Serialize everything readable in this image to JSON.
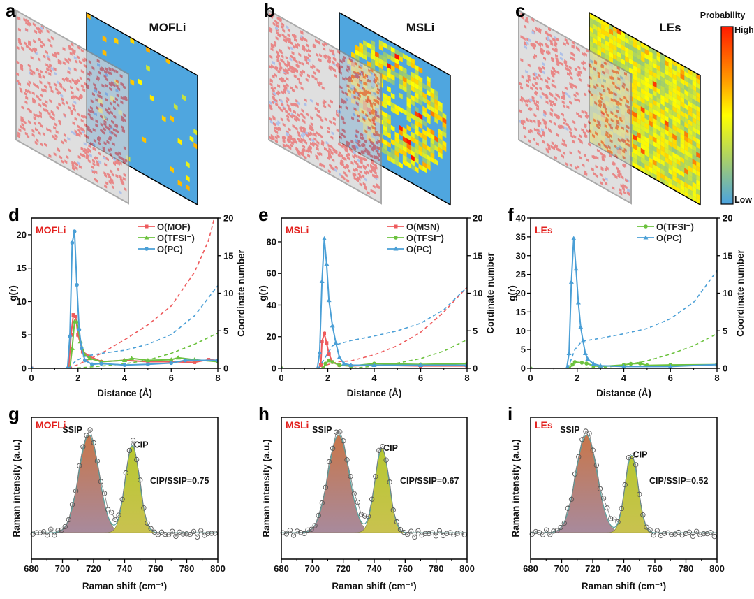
{
  "colors": {
    "red": "#ee5a5c",
    "green": "#6cc23e",
    "blue": "#4a9fd6",
    "ssip_fill": "#b87a6c",
    "cip_fill": "#c6c43c",
    "fit": "#5aa3a0"
  },
  "top_panels": [
    {
      "letter": "a",
      "title": "MOFLi",
      "pattern": "sparse"
    },
    {
      "letter": "b",
      "title": "MSLi",
      "pattern": "ring"
    },
    {
      "letter": "c",
      "title": "LEs",
      "pattern": "dense"
    }
  ],
  "colorbar": {
    "title": "Probability",
    "high": "High",
    "low": "Low"
  },
  "chart_data": [
    {
      "panel": "d",
      "type": "line",
      "sample": "MOFLi",
      "xlabel": "Distance (Å)",
      "ylabel": "g(r)",
      "y2label": "Coordinate number",
      "xlim": [
        0,
        8
      ],
      "ylim": [
        0,
        22.5
      ],
      "y2lim": [
        0,
        20
      ],
      "xticks": [
        "0",
        "2",
        "4",
        "6",
        "8"
      ],
      "yticks": [
        "0",
        "5",
        "10",
        "15",
        "20"
      ],
      "y2ticks": [
        "0",
        "5",
        "10",
        "15",
        "20"
      ],
      "series": [
        {
          "name": "O(MOF)",
          "color": "red",
          "marker": "square",
          "points": [
            [
              0,
              0
            ],
            [
              1.6,
              0
            ],
            [
              1.7,
              5
            ],
            [
              1.8,
              8
            ],
            [
              1.9,
              7.8
            ],
            [
              2,
              5
            ],
            [
              2.2,
              2.5
            ],
            [
              2.5,
              1.8
            ],
            [
              3,
              1
            ],
            [
              4,
              1.2
            ],
            [
              5,
              1
            ],
            [
              6,
              1
            ],
            [
              7,
              0.9
            ],
            [
              7.6,
              1.3
            ],
            [
              8,
              1.2
            ]
          ],
          "cn": [
            [
              1.6,
              0
            ],
            [
              2,
              0.5
            ],
            [
              3,
              2
            ],
            [
              4,
              3.8
            ],
            [
              5,
              5.8
            ],
            [
              6,
              8.3
            ],
            [
              7,
              12.8
            ],
            [
              7.6,
              17
            ],
            [
              7.85,
              20
            ]
          ]
        },
        {
          "name": "O(TFSI⁻)",
          "color": "green",
          "marker": "triangle",
          "points": [
            [
              0,
              0
            ],
            [
              1.65,
              0
            ],
            [
              1.75,
              3
            ],
            [
              1.85,
              7
            ],
            [
              1.95,
              7
            ],
            [
              2.1,
              4
            ],
            [
              2.3,
              2
            ],
            [
              2.5,
              1.5
            ],
            [
              3,
              1
            ],
            [
              4,
              1.2
            ],
            [
              4.3,
              1.5
            ],
            [
              5,
              1.2
            ],
            [
              6,
              1.3
            ],
            [
              6.3,
              1.6
            ],
            [
              7,
              1.3
            ],
            [
              8,
              1
            ]
          ],
          "cn": [
            [
              1.7,
              0
            ],
            [
              2.2,
              0.1
            ],
            [
              3,
              0.3
            ],
            [
              4,
              0.6
            ],
            [
              5,
              1.1
            ],
            [
              6,
              2
            ],
            [
              7,
              3.2
            ],
            [
              8,
              4.7
            ]
          ]
        },
        {
          "name": "O(PC)",
          "color": "blue",
          "marker": "circle",
          "points": [
            [
              0,
              0
            ],
            [
              1.55,
              0
            ],
            [
              1.65,
              4.8
            ],
            [
              1.75,
              18.8
            ],
            [
              1.85,
              20.5
            ],
            [
              1.95,
              12.5
            ],
            [
              2.05,
              5.8
            ],
            [
              2.15,
              3
            ],
            [
              2.3,
              1.2
            ],
            [
              2.6,
              0.6
            ],
            [
              3,
              0.7
            ],
            [
              4,
              0.5
            ],
            [
              5,
              0.6
            ],
            [
              6,
              0.8
            ],
            [
              6.6,
              1.2
            ],
            [
              8,
              1.2
            ]
          ],
          "cn": [
            [
              1.6,
              0
            ],
            [
              1.9,
              1
            ],
            [
              2.3,
              1.6
            ],
            [
              3,
              2
            ],
            [
              4,
              2.4
            ],
            [
              5,
              3.2
            ],
            [
              6,
              4.5
            ],
            [
              7,
              7
            ],
            [
              8,
              11
            ]
          ]
        }
      ]
    },
    {
      "panel": "e",
      "type": "line",
      "sample": "MSLi",
      "xlabel": "Distance (Å)",
      "ylabel": "g(r)",
      "y2label": "Cordinate number",
      "xlim": [
        0,
        8
      ],
      "ylim": [
        0,
        95
      ],
      "y2lim": [
        0,
        20
      ],
      "xticks": [
        "0",
        "2",
        "4",
        "6",
        "8"
      ],
      "yticks": [
        "0",
        "20",
        "40",
        "60",
        "80"
      ],
      "y2ticks": [
        "0",
        "5",
        "10",
        "15",
        "20"
      ],
      "series": [
        {
          "name": "O(MSN)",
          "color": "red",
          "marker": "square",
          "points": [
            [
              0,
              0
            ],
            [
              1.6,
              0
            ],
            [
              1.7,
              2
            ],
            [
              1.75,
              17
            ],
            [
              1.85,
              22
            ],
            [
              1.95,
              16
            ],
            [
              2.05,
              9
            ],
            [
              2.2,
              4
            ],
            [
              2.5,
              2
            ],
            [
              3,
              1.5
            ],
            [
              4,
              2
            ],
            [
              6,
              1.5
            ],
            [
              8,
              1.5
            ]
          ],
          "cn": [
            [
              1.7,
              0
            ],
            [
              2,
              0.5
            ],
            [
              2.5,
              0.9
            ],
            [
              3,
              1
            ],
            [
              4,
              1.8
            ],
            [
              5,
              3
            ],
            [
              6,
              4.8
            ],
            [
              7,
              7.5
            ],
            [
              8,
              10.8
            ]
          ]
        },
        {
          "name": "O(TFSI⁻)",
          "color": "green",
          "marker": "circle",
          "points": [
            [
              0,
              0
            ],
            [
              1.8,
              0
            ],
            [
              1.9,
              3
            ],
            [
              2.05,
              5
            ],
            [
              2.2,
              4
            ],
            [
              2.5,
              2
            ],
            [
              3,
              1.5
            ],
            [
              4,
              3
            ],
            [
              6,
              2.5
            ],
            [
              8,
              3
            ]
          ],
          "cn": [
            [
              2,
              0
            ],
            [
              3,
              0
            ],
            [
              4,
              0.3
            ],
            [
              5,
              0.7
            ],
            [
              6,
              1.3
            ],
            [
              7,
              2.3
            ],
            [
              8,
              3.8
            ]
          ]
        },
        {
          "name": "O(PC)",
          "color": "blue",
          "marker": "triangle",
          "points": [
            [
              0,
              0
            ],
            [
              1.55,
              0
            ],
            [
              1.65,
              10
            ],
            [
              1.75,
              55
            ],
            [
              1.85,
              82
            ],
            [
              1.95,
              66
            ],
            [
              2.05,
              43
            ],
            [
              2.2,
              27
            ],
            [
              2.35,
              16
            ],
            [
              2.5,
              7
            ],
            [
              2.7,
              3
            ],
            [
              3,
              2
            ],
            [
              4,
              2
            ],
            [
              6,
              2
            ],
            [
              8,
              2
            ]
          ],
          "cn": [
            [
              1.6,
              0
            ],
            [
              1.9,
              1.5
            ],
            [
              2.2,
              3
            ],
            [
              3,
              3.7
            ],
            [
              4,
              4.3
            ],
            [
              5,
              5
            ],
            [
              6,
              6
            ],
            [
              7,
              7.8
            ],
            [
              8,
              10.8
            ]
          ]
        }
      ]
    },
    {
      "panel": "f",
      "type": "line",
      "sample": "LEs",
      "xlabel": "Distance (Å)",
      "ylabel": "g(r)",
      "y2label": "Coordinate number",
      "xlim": [
        0,
        8
      ],
      "ylim": [
        0,
        40
      ],
      "y2lim": [
        0,
        20
      ],
      "xticks": [
        "0",
        "2",
        "4",
        "6",
        "8"
      ],
      "yticks": [
        "0",
        "5",
        "10",
        "15",
        "20",
        "25",
        "30",
        "35",
        "40"
      ],
      "y2ticks": [
        "0",
        "5",
        "10",
        "15",
        "20"
      ],
      "series": [
        {
          "name": "O(TFSI⁻)",
          "color": "green",
          "marker": "circle",
          "points": [
            [
              0,
              0
            ],
            [
              1.65,
              0
            ],
            [
              1.8,
              1
            ],
            [
              1.9,
              1.7
            ],
            [
              2.2,
              1.5
            ],
            [
              2.4,
              1.3
            ],
            [
              2.7,
              0.7
            ],
            [
              3,
              0.5
            ],
            [
              4,
              0.9
            ],
            [
              4.3,
              1.2
            ],
            [
              4.7,
              1.3
            ],
            [
              5,
              0.8
            ],
            [
              6,
              0.9
            ],
            [
              8,
              1
            ]
          ],
          "cn": [
            [
              1.8,
              0
            ],
            [
              3,
              0.1
            ],
            [
              4,
              0.4
            ],
            [
              5,
              1
            ],
            [
              6,
              1.9
            ],
            [
              7,
              3
            ],
            [
              8,
              4.6
            ]
          ]
        },
        {
          "name": "O(PC)",
          "color": "blue",
          "marker": "triangle",
          "points": [
            [
              0,
              0
            ],
            [
              1.55,
              0
            ],
            [
              1.65,
              4
            ],
            [
              1.75,
              23
            ],
            [
              1.85,
              34.6
            ],
            [
              1.95,
              26.5
            ],
            [
              2.05,
              17.5
            ],
            [
              2.15,
              11
            ],
            [
              2.25,
              7.3
            ],
            [
              2.35,
              4
            ],
            [
              2.45,
              2.5
            ],
            [
              2.7,
              1.2
            ],
            [
              3,
              0.7
            ],
            [
              4,
              0.5
            ],
            [
              6,
              0.5
            ],
            [
              8,
              1
            ]
          ],
          "cn": [
            [
              1.6,
              0
            ],
            [
              1.9,
              2.5
            ],
            [
              2.2,
              3.6
            ],
            [
              3,
              4
            ],
            [
              4,
              4.6
            ],
            [
              5,
              5.3
            ],
            [
              6,
              6.6
            ],
            [
              7,
              8.8
            ],
            [
              8,
              13
            ]
          ]
        }
      ]
    },
    {
      "panel": "g",
      "type": "scatter",
      "sample": "MOFLi",
      "xlabel": "Raman shift (cm⁻¹)",
      "ylabel": "Raman intensity (a.u.)",
      "xlim": [
        680,
        800
      ],
      "ylim": [
        -0.27,
        1.18
      ],
      "xticks": [
        "680",
        "700",
        "720",
        "740",
        "760",
        "780",
        "800"
      ],
      "peaks": [
        {
          "name": "SSIP",
          "center": 717,
          "height": 1.0,
          "sigma": 6.5
        },
        {
          "name": "CIP",
          "center": 745,
          "height": 0.89,
          "sigma": 4.6
        }
      ],
      "ratio_label": "CIP/SSIP=0.75"
    },
    {
      "panel": "h",
      "type": "scatter",
      "sample": "MSLi",
      "xlabel": "Raman shift (cm⁻¹)",
      "ylabel": "Raman intensity (a.u.)",
      "xlim": [
        680,
        800
      ],
      "ylim": [
        -0.27,
        1.18
      ],
      "xticks": [
        "680",
        "700",
        "720",
        "740",
        "760",
        "780",
        "800"
      ],
      "peaks": [
        {
          "name": "SSIP",
          "center": 717,
          "height": 1.0,
          "sigma": 6.8
        },
        {
          "name": "CIP",
          "center": 745,
          "height": 0.86,
          "sigma": 4.6
        }
      ],
      "ratio_label": "CIP/SSIP=0.67"
    },
    {
      "panel": "i",
      "type": "scatter",
      "sample": "LEs",
      "xlabel": "Raman shift (cm⁻¹)",
      "ylabel": "Raman intensity (a.u.)",
      "xlim": [
        680,
        800
      ],
      "ylim": [
        -0.27,
        1.18
      ],
      "xticks": [
        "680",
        "700",
        "720",
        "740",
        "760",
        "780",
        "800"
      ],
      "peaks": [
        {
          "name": "SSIP",
          "center": 716,
          "height": 1.0,
          "sigma": 6.8
        },
        {
          "name": "CIP",
          "center": 745,
          "height": 0.79,
          "sigma": 4.2
        }
      ],
      "ratio_label": "CIP/SSIP=0.52"
    }
  ]
}
